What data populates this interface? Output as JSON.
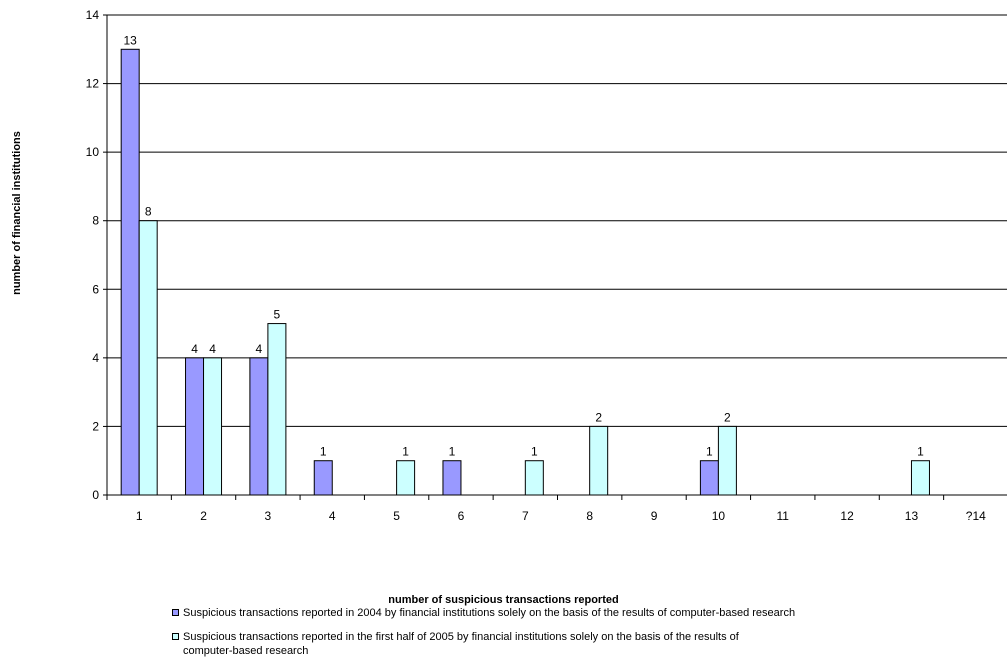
{
  "chart_data": {
    "type": "bar",
    "title": "",
    "xlabel": "number of suspicious transactions reported",
    "ylabel": "number of financial institutions",
    "categories": [
      "1",
      "2",
      "3",
      "4",
      "5",
      "6",
      "7",
      "8",
      "9",
      "10",
      "11",
      "12",
      "13",
      "?14"
    ],
    "ylim": [
      0,
      14
    ],
    "yticks": [
      0,
      2,
      4,
      6,
      8,
      10,
      12,
      14
    ],
    "grid": true,
    "legend_position": "bottom",
    "series": [
      {
        "name": "Suspicious transactions reported in 2004 by financial institutions solely on the basis of the results of computer-based research",
        "color": "#9999ff",
        "values": [
          13,
          4,
          4,
          1,
          null,
          1,
          null,
          null,
          null,
          1,
          null,
          null,
          null,
          null
        ]
      },
      {
        "name": "Suspicious transactions reported in the first half of 2005 by financial institutions solely on the basis of the results of computer-based research",
        "color": "#ccffff",
        "values": [
          8,
          4,
          5,
          null,
          1,
          null,
          1,
          2,
          null,
          2,
          null,
          null,
          1,
          null
        ]
      }
    ]
  }
}
